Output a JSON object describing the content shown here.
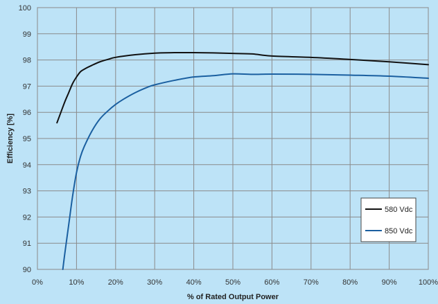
{
  "chart_data": {
    "type": "line",
    "xlabel": "% of Rated Output Power",
    "ylabel": "Efficiency [%]",
    "xlim": [
      0,
      100
    ],
    "ylim": [
      90,
      100
    ],
    "x_ticks": [
      0,
      10,
      20,
      30,
      40,
      50,
      60,
      70,
      80,
      90,
      100
    ],
    "x_tick_labels": [
      "0%",
      "10%",
      "20%",
      "30%",
      "40%",
      "50%",
      "60%",
      "70%",
      "80%",
      "90%",
      "100%"
    ],
    "y_ticks": [
      90,
      91,
      92,
      93,
      94,
      95,
      96,
      97,
      98,
      99,
      100
    ],
    "y_tick_labels": [
      "90",
      "91",
      "92",
      "93",
      "94",
      "95",
      "96",
      "97",
      "98",
      "99",
      "100"
    ],
    "grid": true,
    "legend_position": "bottom-right",
    "series": [
      {
        "name": "580 Vdc",
        "color": "#111111",
        "x": [
          5,
          6,
          7,
          8,
          9,
          10,
          11,
          12,
          14,
          16,
          18,
          20,
          25,
          30,
          35,
          40,
          45,
          50,
          55,
          60,
          70,
          80,
          90,
          100
        ],
        "y": [
          95.6,
          96.0,
          96.4,
          96.75,
          97.1,
          97.35,
          97.55,
          97.65,
          97.8,
          97.93,
          98.02,
          98.1,
          98.2,
          98.26,
          98.28,
          98.28,
          98.27,
          98.25,
          98.23,
          98.15,
          98.1,
          98.02,
          97.93,
          97.82
        ]
      },
      {
        "name": "850 Vdc",
        "color": "#1a5fa0",
        "x": [
          6.5,
          7,
          8,
          9,
          10,
          11,
          12,
          14,
          16,
          18,
          20,
          22,
          25,
          28,
          30,
          35,
          40,
          45,
          50,
          55,
          60,
          70,
          80,
          90,
          100
        ],
        "y": [
          90.0,
          90.6,
          91.7,
          92.8,
          93.7,
          94.3,
          94.7,
          95.3,
          95.75,
          96.05,
          96.3,
          96.5,
          96.75,
          96.95,
          97.05,
          97.22,
          97.35,
          97.4,
          97.47,
          97.45,
          97.46,
          97.45,
          97.42,
          97.38,
          97.3
        ]
      }
    ]
  }
}
